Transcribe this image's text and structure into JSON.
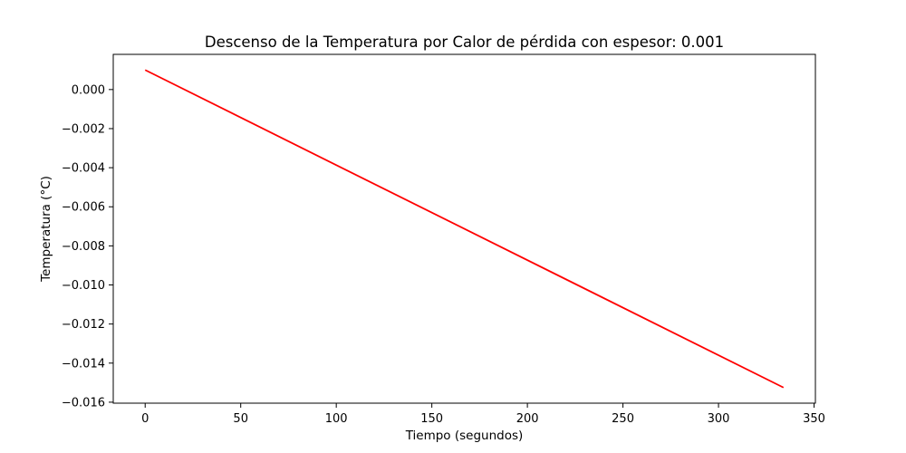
{
  "chart_data": {
    "type": "line",
    "title": "Descenso de la Temperatura por Calor de pérdida con espesor: 0.001",
    "xlabel": "Tiempo (segundos)",
    "ylabel": "Temperatura (°C)",
    "xlim": [
      -16.7,
      350.7
    ],
    "ylim": [
      -0.01605,
      0.0018
    ],
    "x_ticks": [
      0,
      50,
      100,
      150,
      200,
      250,
      300,
      350
    ],
    "x_tick_labels": [
      "0",
      "50",
      "100",
      "150",
      "200",
      "250",
      "300",
      "350"
    ],
    "y_ticks": [
      0.0,
      -0.002,
      -0.004,
      -0.006,
      -0.008,
      -0.01,
      -0.012,
      -0.014,
      -0.016
    ],
    "y_tick_labels": [
      "0.000",
      "−0.002",
      "−0.004",
      "−0.006",
      "−0.008",
      "−0.010",
      "−0.012",
      "−0.014",
      "−0.016"
    ],
    "grid": false,
    "series": [
      {
        "color": "#ff0000",
        "x": [
          0,
          334
        ],
        "y": [
          0.001,
          -0.01525
        ]
      }
    ]
  }
}
